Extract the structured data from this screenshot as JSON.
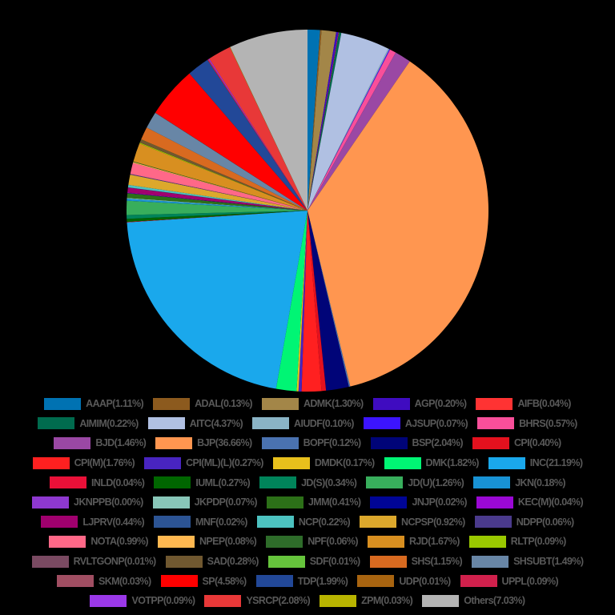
{
  "chart_data": {
    "type": "pie",
    "title": "",
    "start_angle": "top",
    "direction": "clockwise",
    "legend_position": "bottom",
    "background": "#000000",
    "slices": [
      {
        "label": "AAAP",
        "value": 1.11,
        "color": "#0072b2"
      },
      {
        "label": "ADAL",
        "value": 0.13,
        "color": "#8c5a1e"
      },
      {
        "label": "ADMK",
        "value": 1.3,
        "color": "#a38648"
      },
      {
        "label": "AGP",
        "value": 0.2,
        "color": "#3f0cc0"
      },
      {
        "label": "AIFB",
        "value": 0.04,
        "color": "#ff3333"
      },
      {
        "label": "AIMIM",
        "value": 0.22,
        "color": "#006b4e"
      },
      {
        "label": "AITC",
        "value": 4.37,
        "color": "#b0c0e2"
      },
      {
        "label": "AIUDF",
        "value": 0.1,
        "color": "#8ab4c6"
      },
      {
        "label": "AJSUP",
        "value": 0.07,
        "color": "#3c14ff"
      },
      {
        "label": "BHRS",
        "value": 0.57,
        "color": "#f94f9a"
      },
      {
        "label": "BJD",
        "value": 1.46,
        "color": "#9a48a4"
      },
      {
        "label": "BJP",
        "value": 36.66,
        "color": "#ff9650"
      },
      {
        "label": "BOPF",
        "value": 0.12,
        "color": "#4a72b0"
      },
      {
        "label": "BSP",
        "value": 2.04,
        "color": "#000478"
      },
      {
        "label": "CPI",
        "value": 0.4,
        "color": "#e4111e"
      },
      {
        "label": "CPI(M)",
        "value": 1.76,
        "color": "#ff2020"
      },
      {
        "label": "CPI(ML)(L)",
        "value": 0.27,
        "color": "#4824c0"
      },
      {
        "label": "DMDK",
        "value": 0.17,
        "color": "#e8c01c"
      },
      {
        "label": "DMK",
        "value": 1.82,
        "color": "#00f574"
      },
      {
        "label": "INC",
        "value": 21.19,
        "color": "#1aa8ec"
      },
      {
        "label": "INLD",
        "value": 0.04,
        "color": "#ea1038"
      },
      {
        "label": "IUML",
        "value": 0.27,
        "color": "#006600"
      },
      {
        "label": "JD(S)",
        "value": 0.34,
        "color": "#00845a"
      },
      {
        "label": "JD(U)",
        "value": 1.26,
        "color": "#38ae5c"
      },
      {
        "label": "JKN",
        "value": 0.18,
        "color": "#1892d4"
      },
      {
        "label": "JKNPPB",
        "value": 0.0,
        "color": "#8e38d0"
      },
      {
        "label": "JKPDP",
        "value": 0.07,
        "color": "#88c6b8"
      },
      {
        "label": "JMM",
        "value": 0.41,
        "color": "#2c7018"
      },
      {
        "label": "JNJP",
        "value": 0.02,
        "color": "#000596"
      },
      {
        "label": "KEC(M)",
        "value": 0.04,
        "color": "#9a08d4"
      },
      {
        "label": "LJPRV",
        "value": 0.44,
        "color": "#a0006e"
      },
      {
        "label": "MNF",
        "value": 0.02,
        "color": "#2c5494"
      },
      {
        "label": "NCP",
        "value": 0.22,
        "color": "#4cc2c0"
      },
      {
        "label": "NCPSP",
        "value": 0.92,
        "color": "#dca82c"
      },
      {
        "label": "NDPP",
        "value": 0.06,
        "color": "#4a3a8c"
      },
      {
        "label": "NOTA",
        "value": 0.99,
        "color": "#ff6888"
      },
      {
        "label": "NPEP",
        "value": 0.08,
        "color": "#ffb850"
      },
      {
        "label": "NPF",
        "value": 0.06,
        "color": "#2e6c2a"
      },
      {
        "label": "RJD",
        "value": 1.67,
        "color": "#d88f20"
      },
      {
        "label": "RLTP",
        "value": 0.09,
        "color": "#9ac800"
      },
      {
        "label": "RVLTGONP",
        "value": 0.01,
        "color": "#7a4a62"
      },
      {
        "label": "SAD",
        "value": 0.28,
        "color": "#705830"
      },
      {
        "label": "SDF",
        "value": 0.01,
        "color": "#66c43c"
      },
      {
        "label": "SHS",
        "value": 1.15,
        "color": "#d86a20"
      },
      {
        "label": "SHSUBT",
        "value": 1.49,
        "color": "#6886a6"
      },
      {
        "label": "SKM",
        "value": 0.03,
        "color": "#a04e62"
      },
      {
        "label": "SP",
        "value": 4.58,
        "color": "#ff0000"
      },
      {
        "label": "TDP",
        "value": 1.99,
        "color": "#224898"
      },
      {
        "label": "UDP",
        "value": 0.01,
        "color": "#a86410"
      },
      {
        "label": "UPPL",
        "value": 0.09,
        "color": "#d0204c"
      },
      {
        "label": "VOTPP",
        "value": 0.09,
        "color": "#9a38e8"
      },
      {
        "label": "YSRCP",
        "value": 2.08,
        "color": "#e83838"
      },
      {
        "label": "ZPM",
        "value": 0.03,
        "color": "#b8b400"
      },
      {
        "label": "Others",
        "value": 7.03,
        "color": "#b4b4b4"
      }
    ]
  },
  "legend": {
    "rows": [
      [
        "AAAP(1.11%)",
        "ADAL(0.13%)",
        "ADMK(1.30%)",
        "AGP(0.20%)",
        "AIFB(0.04%)"
      ],
      [
        "AIMIM(0.22%)",
        "AITC(4.37%)",
        "AIUDF(0.10%)",
        "AJSUP(0.07%)",
        "BHRS(0.57%)"
      ],
      [
        "BJD(1.46%)",
        "BJP(36.66%)",
        "BOPF(0.12%)",
        "BSP(2.04%)",
        "CPI(0.40%)"
      ],
      [
        "CPI(M)(1.76%)",
        "CPI(ML)(L)(0.27%)",
        "DMDK(0.17%)",
        "DMK(1.82%)",
        "INC(21.19%)"
      ],
      [
        "INLD(0.04%)",
        "IUML(0.27%)",
        "JD(S)(0.34%)",
        "JD(U)(1.26%)",
        "JKN(0.18%)"
      ],
      [
        "JKNPPB(0.00%)",
        "JKPDP(0.07%)",
        "JMM(0.41%)",
        "JNJP(0.02%)",
        "KEC(M)(0.04%)"
      ],
      [
        "LJPRV(0.44%)",
        "MNF(0.02%)",
        "NCP(0.22%)",
        "NCPSP(0.92%)",
        "NDPP(0.06%)"
      ],
      [
        "NOTA(0.99%)",
        "NPEP(0.08%)",
        "NPF(0.06%)",
        "RJD(1.67%)",
        "RLTP(0.09%)"
      ],
      [
        "RVLTGONP(0.01%)",
        "SAD(0.28%)",
        "SDF(0.01%)",
        "SHS(1.15%)",
        "SHSUBT(1.49%)"
      ],
      [
        "SKM(0.03%)",
        "SP(4.58%)",
        "TDP(1.99%)",
        "UDP(0.01%)",
        "UPPL(0.09%)"
      ],
      [
        "VOTPP(0.09%)",
        "YSRCP(2.08%)",
        "ZPM(0.03%)",
        "Others(7.03%)"
      ]
    ]
  }
}
